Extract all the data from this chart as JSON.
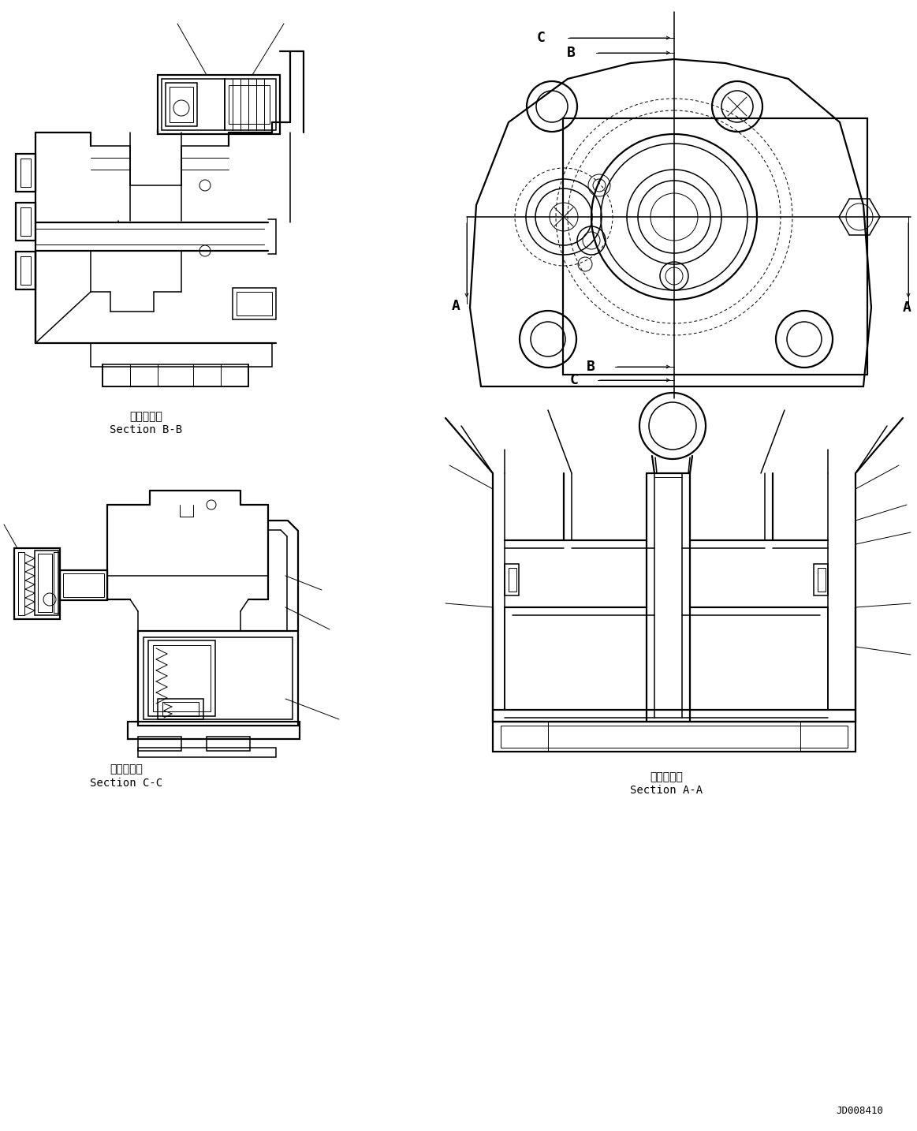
{
  "bg_color": "#ffffff",
  "line_color": "#000000",
  "figsize": [
    11.63,
    14.34
  ],
  "dpi": 100,
  "lw_thin": 0.7,
  "lw_med": 1.1,
  "lw_thick": 1.6,
  "labels": {
    "section_bb_jp": "断面Ｂ－Ｂ",
    "section_bb_en": "Section B-B",
    "section_cc_jp": "断面Ｃ－Ｃ",
    "section_cc_en": "Section C-C",
    "section_aa_jp": "断面Ａ－Ａ",
    "section_aa_en": "Section A-A",
    "ref_id": "JD008410",
    "A": "A",
    "B": "B",
    "C": "C"
  }
}
